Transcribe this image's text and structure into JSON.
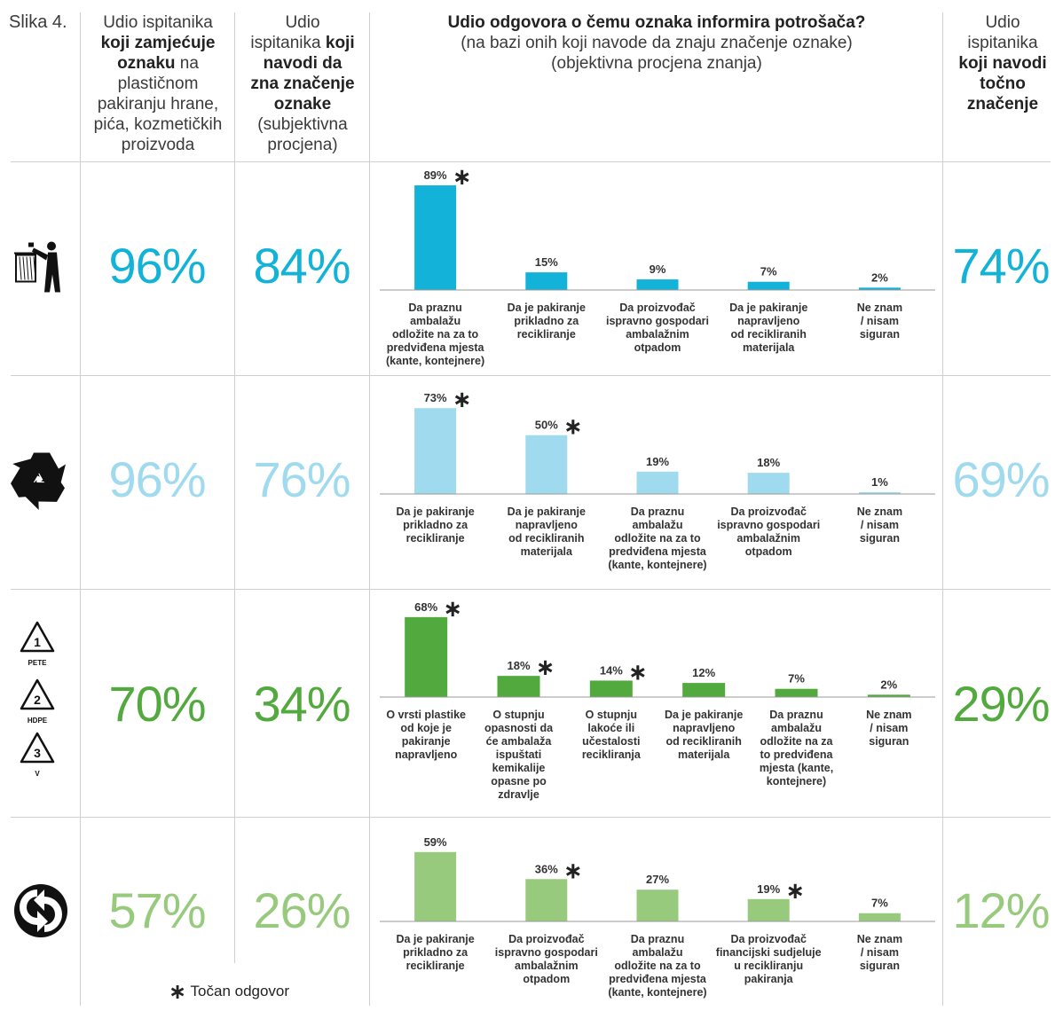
{
  "figure_label": "Slika 4.",
  "header": {
    "col_notice": [
      [
        {
          "t": "Udio ispitanika ",
          "b": false
        }
      ],
      [
        {
          "t": "koji zamjećuje",
          "b": true
        }
      ],
      [
        {
          "t": "oznaku",
          "b": true
        },
        {
          "t": " na",
          "b": false
        }
      ],
      [
        {
          "t": "plastičnom",
          "b": false
        }
      ],
      [
        {
          "t": "pakiranju hrane,",
          "b": false
        }
      ],
      [
        {
          "t": "pića, kozmetičkih",
          "b": false
        }
      ],
      [
        {
          "t": "proizvoda",
          "b": false
        }
      ]
    ],
    "col_know": [
      [
        {
          "t": "Udio",
          "b": false
        }
      ],
      [
        {
          "t": "ispitanika ",
          "b": false
        },
        {
          "t": "koji",
          "b": true
        }
      ],
      [
        {
          "t": "navodi da",
          "b": true
        }
      ],
      [
        {
          "t": "zna značenje",
          "b": true
        }
      ],
      [
        {
          "t": "oznake",
          "b": true
        }
      ],
      [
        {
          "t": "(subjektivna",
          "b": false
        }
      ],
      [
        {
          "t": "procjena)",
          "b": false
        }
      ]
    ],
    "col_chart_title": "Udio odgovora o čemu oznaka informira potrošača?",
    "col_chart_sub1": "(na bazi onih koji navode da znaju značenje oznake)",
    "col_chart_sub2": "(objektivna procjena znanja)",
    "col_correct": [
      [
        {
          "t": "Udio",
          "b": false
        }
      ],
      [
        {
          "t": "ispitanika",
          "b": false
        }
      ],
      [
        {
          "t": "koji navodi",
          "b": true
        }
      ],
      [
        {
          "t": "točno",
          "b": true
        }
      ],
      [
        {
          "t": "značenje",
          "b": true
        }
      ]
    ]
  },
  "legend": {
    "star": "∗",
    "text": "Točan odgovor"
  },
  "chart_data": [
    {
      "type": "bar",
      "symbol": "tidyman-icon",
      "color": "#13b3d9",
      "notice_pct": "96%",
      "know_pct": "84%",
      "correct_pct": "74%",
      "categories": [
        [
          "Da praznu",
          "ambalažu",
          "odložite na za to",
          "predviđena mjesta",
          "(kante, kontejnere)"
        ],
        [
          "Da je pakiranje",
          "prikladno za",
          "recikliranje"
        ],
        [
          "Da proizvođač",
          "ispravno gospodari",
          "ambalažnim",
          "otpadom"
        ],
        [
          "Da je pakiranje",
          "napravljeno",
          "od recikliranih",
          "materijala"
        ],
        [
          "Ne znam",
          "/ nisam",
          "siguran"
        ]
      ],
      "values": [
        89,
        15,
        9,
        7,
        2
      ],
      "value_labels": [
        "89%",
        "15%",
        "9%",
        "7%",
        "2%"
      ],
      "correct": [
        true,
        false,
        false,
        false,
        false
      ]
    },
    {
      "type": "bar",
      "symbol": "recycle-icon",
      "color": "#9fdaef",
      "notice_pct": "96%",
      "know_pct": "76%",
      "correct_pct": "69%",
      "categories": [
        [
          "Da je pakiranje",
          "prikladno za",
          "recikliranje"
        ],
        [
          "Da je pakiranje",
          "napravljeno",
          "od recikliranih",
          "materijala"
        ],
        [
          "Da praznu",
          "ambalažu",
          "odložite na za to",
          "predviđena mjesta",
          "(kante, kontejnere)"
        ],
        [
          "Da proizvođač",
          "ispravno gospodari",
          "ambalažnim",
          "otpadom"
        ],
        [
          "Ne znam",
          "/ nisam",
          "siguran"
        ]
      ],
      "values": [
        73,
        50,
        19,
        18,
        1
      ],
      "value_labels": [
        "73%",
        "50%",
        "19%",
        "18%",
        "1%"
      ],
      "correct": [
        true,
        true,
        false,
        false,
        false
      ]
    },
    {
      "type": "bar",
      "symbol": "resin-code-icons",
      "resin_codes": [
        {
          "num": "1",
          "label": "PETE"
        },
        {
          "num": "2",
          "label": "HDPE"
        },
        {
          "num": "3",
          "label": "V"
        }
      ],
      "color": "#52aa3e",
      "notice_pct": "70%",
      "know_pct": "34%",
      "correct_pct": "29%",
      "categories": [
        [
          "O vrsti plastike",
          "od koje je",
          "pakiranje",
          "napravljeno"
        ],
        [
          "O stupnju",
          "opasnosti da",
          "će ambalaža",
          "ispuštati",
          "kemikalije",
          "opasne po",
          "zdravlje"
        ],
        [
          "O stupnju",
          "lakoće ili",
          "učestalosti",
          "recikliranja"
        ],
        [
          "Da je pakiranje",
          "napravljeno",
          "od recikliranih",
          "materijala"
        ],
        [
          "Da praznu",
          "ambalažu",
          "odložite na za",
          "to predviđena",
          "mjesta (kante,",
          "kontejnere)"
        ],
        [
          "Ne znam",
          "/ nisam",
          "siguran"
        ]
      ],
      "values": [
        68,
        18,
        14,
        12,
        7,
        2
      ],
      "value_labels": [
        "68%",
        "18%",
        "14%",
        "12%",
        "7%",
        "2%"
      ],
      "correct": [
        true,
        true,
        true,
        false,
        false,
        false
      ]
    },
    {
      "type": "bar",
      "symbol": "green-dot-icon",
      "color": "#98ca7e",
      "notice_pct": "57%",
      "know_pct": "26%",
      "correct_pct": "12%",
      "categories": [
        [
          "Da je pakiranje",
          "prikladno za",
          "recikliranje"
        ],
        [
          "Da proizvođač",
          "ispravno gospodari",
          "ambalažnim",
          "otpadom"
        ],
        [
          "Da praznu",
          "ambalažu",
          "odložite na za to",
          "predviđena mjesta",
          "(kante, kontejnere)"
        ],
        [
          "Da proizvođač",
          "financijski sudjeluje",
          "u recikliranju",
          "pakiranja"
        ],
        [
          "Ne znam",
          "/ nisam",
          "siguran"
        ]
      ],
      "values": [
        59,
        36,
        27,
        19,
        7
      ],
      "value_labels": [
        "59%",
        "36%",
        "27%",
        "19%",
        "7%"
      ],
      "correct": [
        false,
        true,
        false,
        true,
        false
      ]
    }
  ]
}
